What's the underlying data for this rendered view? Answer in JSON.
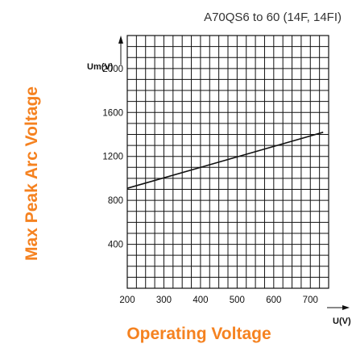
{
  "chart_data": {
    "type": "line",
    "title": "A70QS6 to 60 (14F, 14FI)",
    "xlabel": "Operating Voltage",
    "ylabel": "Max Peak Arc Voltage",
    "x_unit_label": "U(V)",
    "y_unit_label": "Um(V)",
    "xlim": [
      200,
      750
    ],
    "ylim": [
      0,
      2300
    ],
    "x_ticks": [
      200,
      300,
      400,
      500,
      600,
      700
    ],
    "y_ticks": [
      400,
      800,
      1200,
      1600,
      2000
    ],
    "grid": true,
    "series": [
      {
        "x": [
          200,
          735
        ],
        "y": [
          910,
          1420
        ]
      }
    ],
    "accent_color": "#f58220"
  }
}
